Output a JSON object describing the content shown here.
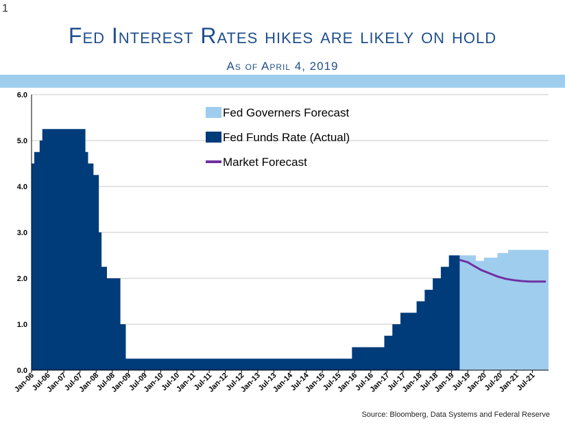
{
  "slide_number": "1",
  "title": "Fed Interest Rates hikes are likely on hold",
  "subtitle": "As of April 4, 2019",
  "source": "Source:  Bloomberg, Data Systems and Federal Reserve",
  "colors": {
    "band": "#9fcdee",
    "actual": "#003b7a",
    "governors": "#9fcdee",
    "market": "#7030a0",
    "title": "#1f4e8c"
  },
  "chart_data": {
    "type": "area",
    "ylim": [
      0,
      6
    ],
    "yticks": [
      "0.0",
      "1.0",
      "2.0",
      "3.0",
      "4.0",
      "5.0",
      "6.0"
    ],
    "xlim": [
      "2006-01",
      "2021-12"
    ],
    "xticks": [
      "Jan-06",
      "Jul-06",
      "Jan-07",
      "Jul-07",
      "Jan-08",
      "Jul-08",
      "Jan-09",
      "Jul-09",
      "Jan-10",
      "Jul-10",
      "Jan-11",
      "Jul-11",
      "Jan-12",
      "Jul-12",
      "Jan-13",
      "Jul-13",
      "Jan-14",
      "Jul-14",
      "Jan-15",
      "Jul-15",
      "Jan-16",
      "Jul-16",
      "Jan-17",
      "Jul-17",
      "Jan-18",
      "Jul-18",
      "Jan-19",
      "Jul-19",
      "Jan-20",
      "Jul-20",
      "Jan-21",
      "Jul-21"
    ],
    "grid": true,
    "legend_position": "top-center",
    "series": [
      {
        "name": "Fed Governers Forecast",
        "kind": "area",
        "color": "#9fcdee",
        "points": [
          [
            "2019-04",
            2.5
          ],
          [
            "2019-10",
            2.38
          ],
          [
            "2020-01",
            2.45
          ],
          [
            "2020-06",
            2.55
          ],
          [
            "2020-10",
            2.62
          ],
          [
            "2021-12",
            2.62
          ]
        ]
      },
      {
        "name": "Fed Funds Rate (Actual)",
        "kind": "step",
        "color": "#003b7a",
        "points": [
          [
            "2006-01",
            4.5
          ],
          [
            "2006-02",
            4.75
          ],
          [
            "2006-04",
            5.0
          ],
          [
            "2006-05",
            5.25
          ],
          [
            "2007-09",
            4.75
          ],
          [
            "2007-10",
            4.5
          ],
          [
            "2007-12",
            4.25
          ],
          [
            "2008-02",
            3.0
          ],
          [
            "2008-03",
            2.25
          ],
          [
            "2008-05",
            2.0
          ],
          [
            "2008-10",
            1.0
          ],
          [
            "2008-12",
            0.25
          ],
          [
            "2015-12",
            0.5
          ],
          [
            "2016-12",
            0.75
          ],
          [
            "2017-03",
            1.0
          ],
          [
            "2017-06",
            1.25
          ],
          [
            "2017-12",
            1.5
          ],
          [
            "2018-03",
            1.75
          ],
          [
            "2018-06",
            2.0
          ],
          [
            "2018-09",
            2.25
          ],
          [
            "2018-12",
            2.5
          ],
          [
            "2019-04",
            2.5
          ]
        ]
      },
      {
        "name": "Market Forecast",
        "kind": "line",
        "color": "#7030a0",
        "points": [
          [
            "2019-04",
            2.4
          ],
          [
            "2019-07",
            2.35
          ],
          [
            "2019-09",
            2.28
          ],
          [
            "2019-12",
            2.18
          ],
          [
            "2020-03",
            2.11
          ],
          [
            "2020-06",
            2.04
          ],
          [
            "2020-09",
            1.99
          ],
          [
            "2020-12",
            1.96
          ],
          [
            "2021-03",
            1.94
          ],
          [
            "2021-06",
            1.93
          ],
          [
            "2021-12",
            1.93
          ]
        ]
      }
    ]
  }
}
